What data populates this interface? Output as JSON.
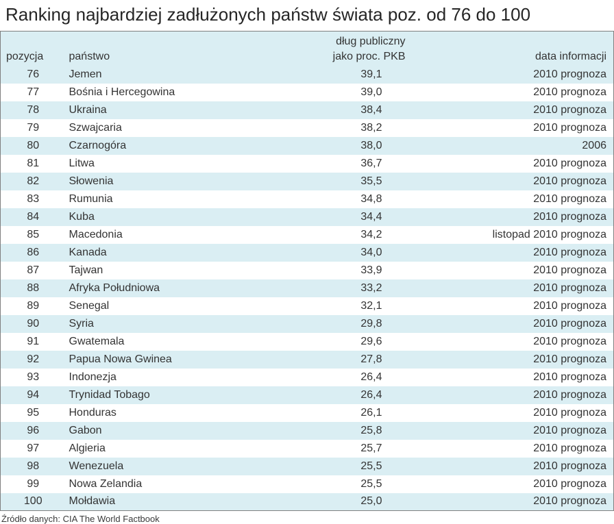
{
  "page_title": "Ranking najbardziej zadłużonych państw świata poz. od 76 do 100",
  "chart_data": {
    "type": "table",
    "title": "Ranking najbardziej zadłużonych państw świata poz. od 76 do 100",
    "header": {
      "pozycja": "pozycja",
      "panstwo": "państwo",
      "dlug_line1": "dług publiczny",
      "dlug_line2": "jako proc. PKB",
      "data_informacji": "data informacji"
    },
    "rows": [
      {
        "pos": "76",
        "country": "Jemen",
        "debt": "39,1",
        "date": "2010 prognoza"
      },
      {
        "pos": "77",
        "country": "Bośnia i Hercegowina",
        "debt": "39,0",
        "date": "2010 prognoza"
      },
      {
        "pos": "78",
        "country": "Ukraina",
        "debt": "38,4",
        "date": "2010 prognoza"
      },
      {
        "pos": "79",
        "country": "Szwajcaria",
        "debt": "38,2",
        "date": "2010 prognoza"
      },
      {
        "pos": "80",
        "country": "Czarnogóra",
        "debt": "38,0",
        "date": "2006"
      },
      {
        "pos": "81",
        "country": "Litwa",
        "debt": "36,7",
        "date": "2010 prognoza"
      },
      {
        "pos": "82",
        "country": "Słowenia",
        "debt": "35,5",
        "date": "2010 prognoza"
      },
      {
        "pos": "83",
        "country": "Rumunia",
        "debt": "34,8",
        "date": "2010 prognoza"
      },
      {
        "pos": "84",
        "country": "Kuba",
        "debt": "34,4",
        "date": "2010 prognoza"
      },
      {
        "pos": "85",
        "country": "Macedonia",
        "debt": "34,2",
        "date": "listopad 2010 prognoza"
      },
      {
        "pos": "86",
        "country": "Kanada",
        "debt": "34,0",
        "date": "2010 prognoza"
      },
      {
        "pos": "87",
        "country": "Tajwan",
        "debt": "33,9",
        "date": "2010 prognoza"
      },
      {
        "pos": "88",
        "country": "Afryka Południowa",
        "debt": "33,2",
        "date": "2010 prognoza"
      },
      {
        "pos": "89",
        "country": "Senegal",
        "debt": "32,1",
        "date": "2010 prognoza"
      },
      {
        "pos": "90",
        "country": "Syria",
        "debt": "29,8",
        "date": "2010 prognoza"
      },
      {
        "pos": "91",
        "country": "Gwatemala",
        "debt": "29,6",
        "date": "2010 prognoza"
      },
      {
        "pos": "92",
        "country": "Papua Nowa Gwinea",
        "debt": "27,8",
        "date": "2010 prognoza"
      },
      {
        "pos": "93",
        "country": "Indonezja",
        "debt": "26,4",
        "date": "2010 prognoza"
      },
      {
        "pos": "94",
        "country": "Trynidad Tobago",
        "debt": "26,4",
        "date": "2010 prognoza"
      },
      {
        "pos": "95",
        "country": "Honduras",
        "debt": "26,1",
        "date": "2010 prognoza"
      },
      {
        "pos": "96",
        "country": "Gabon",
        "debt": "25,8",
        "date": "2010 prognoza"
      },
      {
        "pos": "97",
        "country": "Algieria",
        "debt": "25,7",
        "date": "2010 prognoza"
      },
      {
        "pos": "98",
        "country": "Wenezuela",
        "debt": "25,5",
        "date": "2010 prognoza"
      },
      {
        "pos": "99",
        "country": "Nowa Zelandia",
        "debt": "25,5",
        "date": "2010 prognoza"
      },
      {
        "pos": "100",
        "country": "Mołdawia",
        "debt": "25,0",
        "date": "2010 prognoza"
      }
    ]
  },
  "source_note": "Źródło danych: CIA The World Factbook",
  "colors": {
    "row_alt": "#daeef3",
    "row_plain": "#ffffff",
    "text": "#333333",
    "border": "#7f7f7f"
  }
}
